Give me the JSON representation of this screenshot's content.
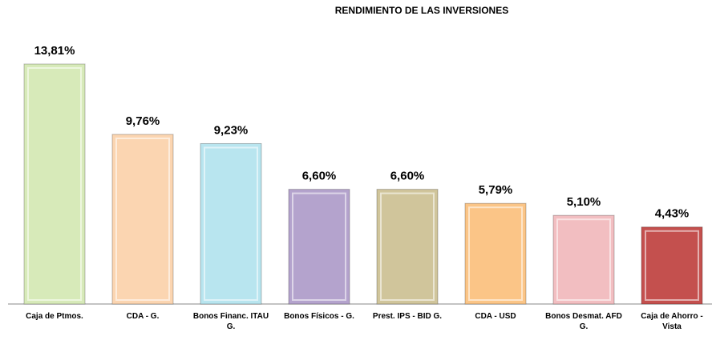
{
  "chart_data": {
    "type": "bar",
    "title": "RENDIMIENTO DE LAS INVERSIONES",
    "categories": [
      "Caja de Ptmos.",
      "CDA - G.",
      "Bonos Financ. ITAU G.",
      "Bonos Físicos - G.",
      "Prest. IPS - BID G.",
      "CDA - USD",
      "Bonos Desmat. AFD G.",
      "Caja de Ahorro - Vista"
    ],
    "values": [
      13.81,
      9.76,
      9.23,
      6.6,
      6.6,
      5.79,
      5.1,
      4.43
    ],
    "value_labels": [
      "13,81%",
      "9,76%",
      "9,23%",
      "6,60%",
      "6,60%",
      "5,79%",
      "5,10%",
      "4,43%"
    ],
    "colors": [
      "#d7eab9",
      "#fbd5b1",
      "#b8e5ef",
      "#b4a3cd",
      "#d0c59b",
      "#fbc587",
      "#f2bec1",
      "#c4504e"
    ]
  }
}
